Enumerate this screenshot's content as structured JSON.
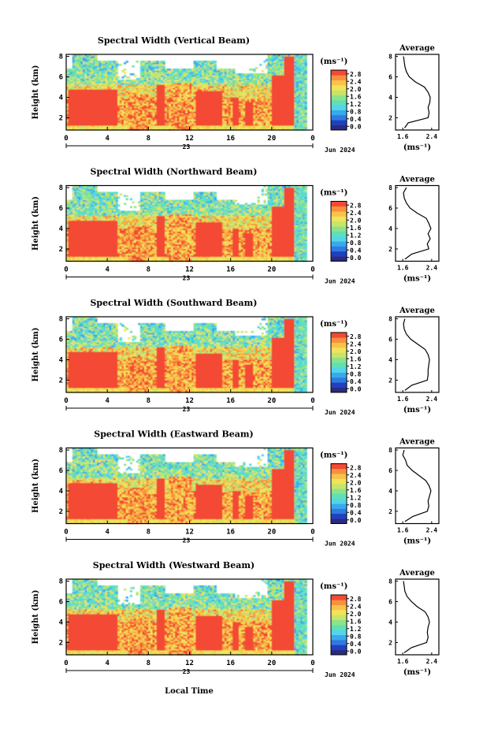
{
  "figure": {
    "xlabel": "Local Time",
    "date_label": "Jun 2024",
    "day_label": "23"
  },
  "colorbar": {
    "unit": "(ms⁻¹)",
    "ticks": [
      "0.0",
      "0.4",
      "0.8",
      "1.2",
      "1.6",
      "2.0",
      "2.4",
      "2.8"
    ],
    "colors": [
      "#2b2b7f",
      "#2040c0",
      "#2f7be0",
      "#39a9ef",
      "#52d6e8",
      "#5fe0b6",
      "#8ee38a",
      "#c8e56a",
      "#f1e45a",
      "#f9c24a",
      "#f7913d",
      "#f34a34"
    ]
  },
  "palette": {
    "nodata": "#ffffff",
    "frame": "#000000"
  },
  "chart_data": [
    {
      "type": "heatmap",
      "title": "Spectral Width (Vertical Beam)",
      "ylabel": "Height (km)",
      "x_ticks": [
        "0",
        "4",
        "8",
        "12",
        "16",
        "20",
        "0"
      ],
      "y_ticks": [
        "2",
        "4",
        "6",
        "8"
      ],
      "xlim": [
        0,
        24
      ],
      "ylim": [
        0.8,
        8.2
      ],
      "z_unit": "ms⁻¹",
      "zlim": [
        0,
        2.8
      ],
      "avg": {
        "title": "Average",
        "xlabel": "(ms⁻¹)",
        "x_ticks": [
          "1.6",
          "2.4"
        ],
        "y_ticks": [
          "2",
          "4",
          "6",
          "8"
        ],
        "xlim": [
          1.4,
          2.6
        ],
        "ylim": [
          0.8,
          8.2
        ],
        "heights": [
          8.0,
          7.5,
          7.0,
          6.5,
          6.0,
          5.5,
          5.0,
          4.5,
          4.0,
          3.5,
          3.0,
          2.5,
          2.0,
          1.5,
          1.0
        ],
        "values": [
          1.62,
          1.64,
          1.66,
          1.7,
          1.78,
          1.95,
          2.2,
          2.3,
          2.36,
          2.35,
          2.3,
          2.33,
          2.3,
          1.75,
          1.65
        ]
      }
    },
    {
      "type": "heatmap",
      "title": "Spectral Width (Northward Beam)",
      "ylabel": "Height (km)",
      "x_ticks": [
        "0",
        "4",
        "8",
        "12",
        "16",
        "20",
        "0"
      ],
      "y_ticks": [
        "2",
        "4",
        "6",
        "8"
      ],
      "xlim": [
        0,
        24
      ],
      "ylim": [
        0.8,
        8.2
      ],
      "z_unit": "ms⁻¹",
      "zlim": [
        0,
        2.8
      ],
      "avg": {
        "title": "Average",
        "xlabel": "(ms⁻¹)",
        "x_ticks": [
          "1.6",
          "2.4"
        ],
        "y_ticks": [
          "2",
          "4",
          "6",
          "8"
        ],
        "xlim": [
          1.4,
          2.6
        ],
        "ylim": [
          0.8,
          8.2
        ],
        "heights": [
          8.0,
          7.5,
          7.0,
          6.5,
          6.0,
          5.5,
          5.0,
          4.5,
          4.0,
          3.5,
          3.0,
          2.5,
          2.0,
          1.5,
          1.0
        ],
        "values": [
          1.7,
          1.62,
          1.64,
          1.7,
          1.8,
          2.0,
          2.25,
          2.32,
          2.38,
          2.3,
          2.36,
          2.28,
          2.32,
          1.85,
          1.66
        ]
      }
    },
    {
      "type": "heatmap",
      "title": "Spectral Width (Southward Beam)",
      "ylabel": "Height (km)",
      "x_ticks": [
        "0",
        "4",
        "8",
        "12",
        "16",
        "20",
        "0"
      ],
      "y_ticks": [
        "2",
        "4",
        "6",
        "8"
      ],
      "xlim": [
        0,
        24
      ],
      "ylim": [
        0.8,
        8.2
      ],
      "z_unit": "ms⁻¹",
      "zlim": [
        0,
        2.8
      ],
      "avg": {
        "title": "Average",
        "xlabel": "(ms⁻¹)",
        "x_ticks": [
          "1.6",
          "2.4"
        ],
        "y_ticks": [
          "2",
          "4",
          "6",
          "8"
        ],
        "xlim": [
          1.4,
          2.6
        ],
        "ylim": [
          0.8,
          8.2
        ],
        "heights": [
          8.0,
          7.5,
          7.0,
          6.5,
          6.0,
          5.5,
          5.0,
          4.5,
          4.0,
          3.5,
          3.0,
          2.5,
          2.0,
          1.5,
          1.0
        ],
        "values": [
          1.66,
          1.62,
          1.64,
          1.7,
          1.82,
          2.02,
          2.22,
          2.3,
          2.34,
          2.32,
          2.3,
          2.3,
          2.28,
          1.85,
          1.66
        ]
      }
    },
    {
      "type": "heatmap",
      "title": "Spectral Width (Eastward Beam)",
      "ylabel": "Height (km)",
      "x_ticks": [
        "0",
        "4",
        "8",
        "12",
        "16",
        "20",
        "0"
      ],
      "y_ticks": [
        "2",
        "4",
        "6",
        "8"
      ],
      "xlim": [
        0,
        24
      ],
      "ylim": [
        0.8,
        8.2
      ],
      "z_unit": "ms⁻¹",
      "zlim": [
        0,
        2.8
      ],
      "avg": {
        "title": "Average",
        "xlabel": "(ms⁻¹)",
        "x_ticks": [
          "1.6",
          "2.4"
        ],
        "y_ticks": [
          "2",
          "4",
          "6",
          "8"
        ],
        "xlim": [
          1.4,
          2.6
        ],
        "ylim": [
          0.8,
          8.2
        ],
        "heights": [
          8.0,
          7.5,
          7.0,
          6.5,
          6.0,
          5.5,
          5.0,
          4.5,
          4.0,
          3.5,
          3.0,
          2.5,
          2.0,
          1.5,
          1.0
        ],
        "values": [
          1.64,
          1.6,
          1.68,
          1.72,
          1.86,
          2.05,
          2.24,
          2.33,
          2.38,
          2.34,
          2.3,
          2.32,
          2.28,
          1.88,
          1.66
        ]
      }
    },
    {
      "type": "heatmap",
      "title": "Spectral Width (Westward Beam)",
      "ylabel": "Height (km)",
      "x_ticks": [
        "0",
        "4",
        "8",
        "12",
        "16",
        "20",
        "0"
      ],
      "y_ticks": [
        "2",
        "4",
        "6",
        "8"
      ],
      "xlim": [
        0,
        24
      ],
      "ylim": [
        0.8,
        8.2
      ],
      "z_unit": "ms⁻¹",
      "zlim": [
        0,
        2.8
      ],
      "avg": {
        "title": "Average",
        "xlabel": "(ms⁻¹)",
        "x_ticks": [
          "1.6",
          "2.4"
        ],
        "y_ticks": [
          "2",
          "4",
          "6",
          "8"
        ],
        "xlim": [
          1.4,
          2.6
        ],
        "ylim": [
          0.8,
          8.2
        ],
        "heights": [
          8.0,
          7.5,
          7.0,
          6.5,
          6.0,
          5.5,
          5.0,
          4.5,
          4.0,
          3.5,
          3.0,
          2.5,
          2.0,
          1.5,
          1.0
        ],
        "values": [
          1.62,
          1.64,
          1.66,
          1.72,
          1.84,
          2.0,
          2.22,
          2.3,
          2.34,
          2.3,
          2.28,
          2.3,
          2.26,
          1.84,
          1.64
        ]
      }
    }
  ]
}
